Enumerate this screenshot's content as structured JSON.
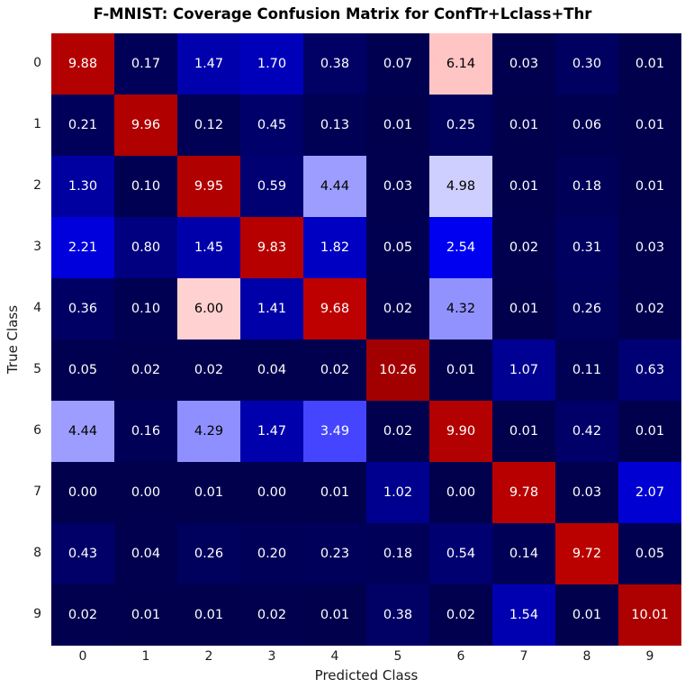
{
  "chart_data": {
    "type": "heatmap",
    "title": "F-MNIST: Coverage Confusion Matrix for ConfTr+Lclass+Thr",
    "xlabel": "Predicted Class",
    "ylabel": "True Class",
    "x_tick_labels": [
      "0",
      "1",
      "2",
      "3",
      "4",
      "5",
      "6",
      "7",
      "8",
      "9"
    ],
    "y_tick_labels": [
      "0",
      "1",
      "2",
      "3",
      "4",
      "5",
      "6",
      "7",
      "8",
      "9"
    ],
    "matrix": [
      [
        9.88,
        0.17,
        1.47,
        1.7,
        0.38,
        0.07,
        6.14,
        0.03,
        0.3,
        0.01
      ],
      [
        0.21,
        9.96,
        0.12,
        0.45,
        0.13,
        0.01,
        0.25,
        0.01,
        0.06,
        0.01
      ],
      [
        1.3,
        0.1,
        9.95,
        0.59,
        4.44,
        0.03,
        4.98,
        0.01,
        0.18,
        0.01
      ],
      [
        2.21,
        0.8,
        1.45,
        9.83,
        1.82,
        0.05,
        2.54,
        0.02,
        0.31,
        0.03
      ],
      [
        0.36,
        0.1,
        6.0,
        1.41,
        9.68,
        0.02,
        4.32,
        0.01,
        0.26,
        0.02
      ],
      [
        0.05,
        0.02,
        0.02,
        0.04,
        0.02,
        10.26,
        0.01,
        1.07,
        0.11,
        0.63
      ],
      [
        4.44,
        0.16,
        4.29,
        1.47,
        3.49,
        0.02,
        9.9,
        0.01,
        0.42,
        0.01
      ],
      [
        0.0,
        0.0,
        0.01,
        0.0,
        0.01,
        1.02,
        0.0,
        9.78,
        0.03,
        2.07
      ],
      [
        0.43,
        0.04,
        0.26,
        0.2,
        0.23,
        0.18,
        0.54,
        0.14,
        9.72,
        0.05
      ],
      [
        0.02,
        0.01,
        0.01,
        0.02,
        0.01,
        0.38,
        0.02,
        1.54,
        0.01,
        10.01
      ]
    ],
    "colormap": {
      "name": "seismic",
      "vmin": 0,
      "vmax": 11
    },
    "text_colors": {
      "on_dark": "#ffffff",
      "on_light": "#000000"
    },
    "value_format": "2-decimals",
    "grid": false,
    "legend": "none"
  }
}
